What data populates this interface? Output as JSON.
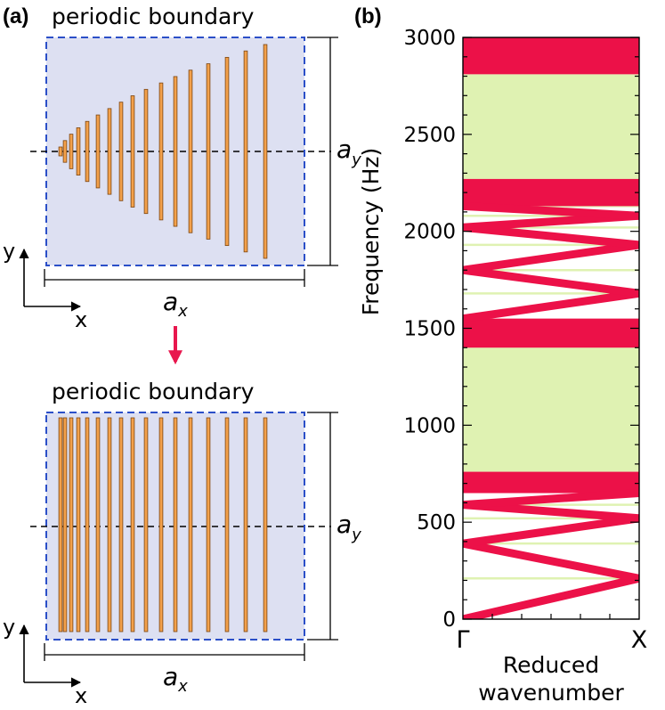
{
  "panel_a": {
    "label": "(a)",
    "top": {
      "title": "periodic boundary",
      "bar_count": 17,
      "arrangement": "tapered (graded lengths)",
      "dim_horizontal": {
        "symbol": "a",
        "subscript": "x"
      },
      "dim_vertical": {
        "symbol": "a",
        "subscript": "y"
      },
      "axes": {
        "y": "y",
        "x": "x"
      }
    },
    "bottom": {
      "title": "periodic boundary",
      "bar_count": 17,
      "arrangement": "uniform (equal lengths)",
      "dim_horizontal": {
        "symbol": "a",
        "subscript": "x"
      },
      "dim_vertical": {
        "symbol": "a",
        "subscript": "y"
      },
      "axes": {
        "y": "y",
        "x": "x"
      }
    },
    "colors": {
      "cell_fill": "#dde0f2",
      "cell_border": "#2b4fc8",
      "bar_fill": "#f3a14b",
      "bar_stroke": "#7a4410",
      "arrow": "#e8174e"
    }
  },
  "panel_b": {
    "label": "(b)",
    "colors": {
      "band": "#ec1148",
      "gap": "#dff2b2"
    },
    "chart_data": {
      "type": "band-structure",
      "ylabel": "Frequency (Hz)",
      "xlabel": "Reduced wavenumber",
      "x_ticks": [
        "Γ",
        "X"
      ],
      "y_ticks": [
        0,
        500,
        1000,
        1500,
        2000,
        2500,
        3000
      ],
      "ylim": [
        0,
        3000
      ],
      "xlim": [
        0,
        1
      ],
      "band_gaps_hz": [
        [
          760,
          1400
        ],
        [
          2270,
          2810
        ]
      ],
      "band_dense_regions_hz": [
        [
          650,
          760
        ],
        [
          1400,
          1550
        ],
        [
          2130,
          2270
        ],
        [
          2810,
          3000
        ]
      ],
      "dispersion_branches": [
        {
          "k": [
            0,
            1
          ],
          "f": [
            0,
            210
          ]
        },
        {
          "k": [
            0,
            1
          ],
          "f": [
            390,
            210
          ]
        },
        {
          "k": [
            0,
            1
          ],
          "f": [
            390,
            520
          ]
        },
        {
          "k": [
            0,
            1
          ],
          "f": [
            590,
            520
          ]
        },
        {
          "k": [
            0,
            1
          ],
          "f": [
            590,
            650
          ]
        },
        {
          "k": [
            0,
            1
          ],
          "f": [
            1550,
            1680
          ]
        },
        {
          "k": [
            0,
            1
          ],
          "f": [
            1800,
            1680
          ]
        },
        {
          "k": [
            0,
            1
          ],
          "f": [
            1800,
            1930
          ]
        },
        {
          "k": [
            0,
            1
          ],
          "f": [
            2020,
            1930
          ]
        },
        {
          "k": [
            0,
            1
          ],
          "f": [
            2020,
            2080
          ]
        },
        {
          "k": [
            0,
            1
          ],
          "f": [
            2130,
            2080
          ]
        }
      ]
    }
  }
}
